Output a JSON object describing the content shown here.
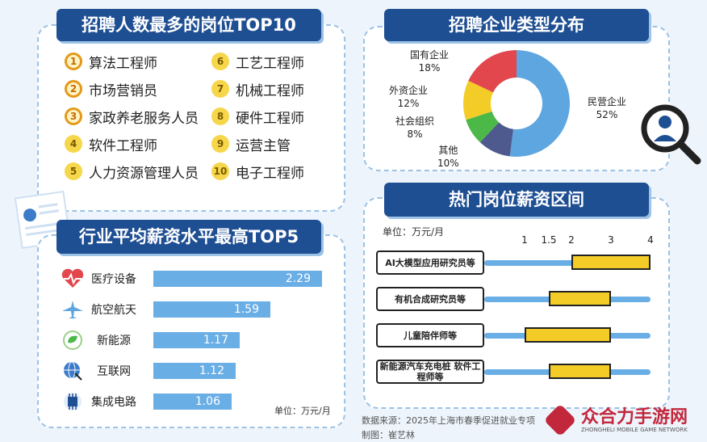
{
  "top_jobs": {
    "title": "招聘人数最多的岗位TOP10",
    "items": [
      {
        "rank": "1",
        "name": "算法工程师"
      },
      {
        "rank": "2",
        "name": "市场营销员"
      },
      {
        "rank": "3",
        "name": "家政养老服务人员"
      },
      {
        "rank": "4",
        "name": "软件工程师"
      },
      {
        "rank": "5",
        "name": "人力资源管理人员"
      },
      {
        "rank": "6",
        "name": "工艺工程师"
      },
      {
        "rank": "7",
        "name": "机械工程师"
      },
      {
        "rank": "8",
        "name": "硬件工程师"
      },
      {
        "rank": "9",
        "name": "运营主管"
      },
      {
        "rank": "10",
        "name": "电子工程师"
      }
    ]
  },
  "industries": {
    "title": "行业平均薪资水平最高TOP5",
    "unit": "单位：万元/月",
    "items": [
      {
        "name": "医疗设备",
        "icon": "heart-pulse-icon",
        "value": "2.29"
      },
      {
        "name": "航空航天",
        "icon": "airplane-icon",
        "value": "1.59"
      },
      {
        "name": "新能源",
        "icon": "leaf-icon",
        "value": "1.17"
      },
      {
        "name": "互联网",
        "icon": "globe-icon",
        "value": "1.12"
      },
      {
        "name": "集成电路",
        "icon": "chip-icon",
        "value": "1.06"
      }
    ]
  },
  "company_types": {
    "title": "招聘企业类型分布",
    "slices": [
      {
        "name": "民营企业",
        "pct": "52%"
      },
      {
        "name": "其他",
        "pct": "10%"
      },
      {
        "name": "社会组织",
        "pct": "8%"
      },
      {
        "name": "外资企业",
        "pct": "12%"
      },
      {
        "name": "国有企业",
        "pct": "18%"
      }
    ]
  },
  "salary": {
    "title": "热门岗位薪资区间",
    "unit": "单位：万元/月",
    "ticks": [
      "1",
      "1.5",
      "2",
      "3",
      "4"
    ],
    "jobs": [
      {
        "name": "AI大模型应用研究员等"
      },
      {
        "name": "有机合成研究员等"
      },
      {
        "name": "儿童陪伴师等"
      },
      {
        "name": "新能源汽车充电桩 软件工程师等"
      }
    ]
  },
  "footer": {
    "source": "数据来源：2025年上海市春季促进就业专项",
    "author": "制图：崔艺林",
    "watermark": "众合力手游网",
    "watermark_en": "ZHONGHELI MOBILE GAME NETWORK"
  },
  "chart_data": [
    {
      "type": "bar",
      "title": "行业平均薪资水平最高TOP5",
      "categories": [
        "医疗设备",
        "航空航天",
        "新能源",
        "互联网",
        "集成电路"
      ],
      "values": [
        2.29,
        1.59,
        1.17,
        1.12,
        1.06
      ],
      "ylabel": "单位：万元/月"
    },
    {
      "type": "pie",
      "title": "招聘企业类型分布",
      "categories": [
        "民营企业",
        "其他",
        "社会组织",
        "外资企业",
        "国有企业"
      ],
      "values": [
        52,
        10,
        8,
        12,
        18
      ],
      "colors": [
        "#5ea6e0",
        "#4e5a8e",
        "#4cb848",
        "#f4cc27",
        "#e2474e"
      ]
    },
    {
      "type": "bar",
      "title": "热门岗位薪资区间",
      "categories": [
        "AI大模型应用研究员等",
        "有机合成研究员等",
        "儿童陪伴师等",
        "新能源汽车充电桩 软件工程师等"
      ],
      "series": [
        {
          "name": "low",
          "values": [
            2.0,
            1.5,
            1.0,
            1.5
          ]
        },
        {
          "name": "high",
          "values": [
            4.0,
            3.0,
            3.0,
            3.0
          ]
        }
      ],
      "xticks": [
        1,
        1.5,
        2,
        3,
        4
      ],
      "ylabel": "单位：万元/月"
    }
  ]
}
